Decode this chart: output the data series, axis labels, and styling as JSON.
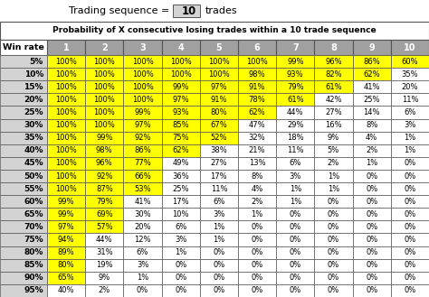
{
  "title": "Probability of X consecutive losing trades within a 10 trade sequence",
  "header_top": "Trading sequence =",
  "header_value": "10",
  "header_suffix": "trades",
  "win_rates": [
    "5%",
    "10%",
    "15%",
    "20%",
    "25%",
    "30%",
    "35%",
    "40%",
    "45%",
    "50%",
    "55%",
    "60%",
    "65%",
    "70%",
    "75%",
    "80%",
    "85%",
    "90%",
    "95%"
  ],
  "table_data": [
    [
      "100%",
      "100%",
      "100%",
      "100%",
      "100%",
      "100%",
      "99%",
      "96%",
      "86%",
      "60%"
    ],
    [
      "100%",
      "100%",
      "100%",
      "100%",
      "100%",
      "98%",
      "93%",
      "82%",
      "62%",
      "35%"
    ],
    [
      "100%",
      "100%",
      "100%",
      "99%",
      "97%",
      "91%",
      "79%",
      "61%",
      "41%",
      "20%"
    ],
    [
      "100%",
      "100%",
      "100%",
      "97%",
      "91%",
      "78%",
      "61%",
      "42%",
      "25%",
      "11%"
    ],
    [
      "100%",
      "100%",
      "99%",
      "93%",
      "80%",
      "62%",
      "44%",
      "27%",
      "14%",
      "6%"
    ],
    [
      "100%",
      "100%",
      "97%",
      "85%",
      "67%",
      "47%",
      "29%",
      "16%",
      "8%",
      "3%"
    ],
    [
      "100%",
      "99%",
      "92%",
      "75%",
      "52%",
      "32%",
      "18%",
      "9%",
      "4%",
      "1%"
    ],
    [
      "100%",
      "98%",
      "86%",
      "62%",
      "38%",
      "21%",
      "11%",
      "5%",
      "2%",
      "1%"
    ],
    [
      "100%",
      "96%",
      "77%",
      "49%",
      "27%",
      "13%",
      "6%",
      "2%",
      "1%",
      "0%"
    ],
    [
      "100%",
      "92%",
      "66%",
      "36%",
      "17%",
      "8%",
      "3%",
      "1%",
      "0%",
      "0%"
    ],
    [
      "100%",
      "87%",
      "53%",
      "25%",
      "11%",
      "4%",
      "1%",
      "1%",
      "0%",
      "0%"
    ],
    [
      "99%",
      "79%",
      "41%",
      "17%",
      "6%",
      "2%",
      "1%",
      "0%",
      "0%",
      "0%"
    ],
    [
      "99%",
      "69%",
      "30%",
      "10%",
      "3%",
      "1%",
      "0%",
      "0%",
      "0%",
      "0%"
    ],
    [
      "97%",
      "57%",
      "20%",
      "6%",
      "1%",
      "0%",
      "0%",
      "0%",
      "0%",
      "0%"
    ],
    [
      "94%",
      "44%",
      "12%",
      "3%",
      "1%",
      "0%",
      "0%",
      "0%",
      "0%",
      "0%"
    ],
    [
      "89%",
      "31%",
      "6%",
      "1%",
      "0%",
      "0%",
      "0%",
      "0%",
      "0%",
      "0%"
    ],
    [
      "80%",
      "19%",
      "3%",
      "0%",
      "0%",
      "0%",
      "0%",
      "0%",
      "0%",
      "0%"
    ],
    [
      "65%",
      "9%",
      "1%",
      "0%",
      "0%",
      "0%",
      "0%",
      "0%",
      "0%",
      "0%"
    ],
    [
      "40%",
      "2%",
      "0%",
      "0%",
      "0%",
      "0%",
      "0%",
      "0%",
      "0%",
      "0%"
    ]
  ],
  "yellow_color": "#FFFF00",
  "white_color": "#FFFFFF",
  "light_gray": "#D3D3D3",
  "mid_gray": "#A0A0A0",
  "dark_gray": "#707070",
  "border_color": "#555555",
  "text_color": "#000000",
  "figsize": [
    4.74,
    3.29
  ],
  "dpi": 100
}
